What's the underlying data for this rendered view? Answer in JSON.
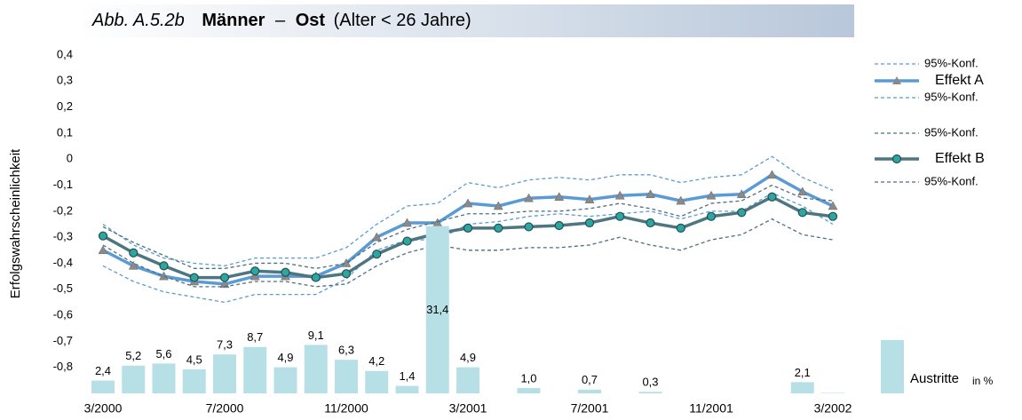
{
  "chart_data": {
    "type": "line",
    "title": {
      "label": "Abb. A.5.2b",
      "main": "Männer",
      "dash": "–",
      "region": "Ost",
      "note": "(Alter < 26 Jahre)"
    },
    "y_label": "Erfolgswahrscheinlichkeit",
    "categories": [
      "3/2000",
      null,
      null,
      null,
      "7/2000",
      null,
      null,
      null,
      "11/2000",
      null,
      null,
      null,
      "3/2001",
      null,
      null,
      null,
      "7/2001",
      null,
      null,
      null,
      "11/2001",
      null,
      null,
      null,
      "3/2002"
    ],
    "ylim": [
      -0.9,
      0.4
    ],
    "yticks": [
      {
        "value": 0.4,
        "label": "0,4"
      },
      {
        "value": 0.3,
        "label": "0,3"
      },
      {
        "value": 0.2,
        "label": "0,2"
      },
      {
        "value": 0.1,
        "label": "0,1"
      },
      0,
      {
        "value": -0.1,
        "label": "-0,1"
      },
      {
        "value": -0.2,
        "label": "-0,2"
      },
      {
        "value": -0.3,
        "label": "-0,3"
      },
      {
        "value": -0.4,
        "label": "-0,4"
      },
      {
        "value": -0.5,
        "label": "-0,5"
      },
      {
        "value": -0.6,
        "label": "-0,6"
      },
      {
        "value": -0.7,
        "label": "-0,7"
      },
      {
        "value": -0.8,
        "label": "-0,8"
      }
    ],
    "y2lim": [
      0,
      63.5
    ],
    "series": [
      {
        "name": "95%-Konf.",
        "style": "dashed",
        "color": "#5b9bd5",
        "values": [
          -0.25,
          -0.33,
          -0.38,
          -0.4,
          -0.41,
          -0.38,
          -0.38,
          -0.38,
          -0.34,
          -0.25,
          -0.18,
          -0.17,
          -0.09,
          -0.11,
          -0.08,
          -0.07,
          -0.08,
          -0.06,
          -0.06,
          -0.09,
          -0.07,
          -0.06,
          0.01,
          -0.07,
          -0.12
        ]
      },
      {
        "name": "Effekt A",
        "style": "triangle",
        "color": "#5b9bd5",
        "values": [
          -0.35,
          -0.41,
          -0.45,
          -0.47,
          -0.48,
          -0.45,
          -0.45,
          -0.45,
          -0.4,
          -0.3,
          -0.245,
          -0.245,
          -0.17,
          -0.18,
          -0.15,
          -0.145,
          -0.155,
          -0.14,
          -0.135,
          -0.16,
          -0.14,
          -0.135,
          -0.06,
          -0.125,
          -0.18
        ]
      },
      {
        "name": "95%-Konf.",
        "style": "dashed",
        "color": "#5b9bd5",
        "values": [
          -0.41,
          -0.47,
          -0.51,
          -0.53,
          -0.55,
          -0.52,
          -0.52,
          -0.52,
          -0.46,
          -0.35,
          -0.31,
          -0.31,
          -0.25,
          -0.24,
          -0.22,
          -0.21,
          -0.22,
          -0.21,
          -0.2,
          -0.23,
          -0.2,
          -0.2,
          -0.13,
          -0.18,
          -0.25
        ]
      },
      {
        "name": "95%-Konf.",
        "style": "dashed",
        "color": "#4d6f80",
        "values": [
          -0.26,
          -0.32,
          -0.37,
          -0.42,
          -0.42,
          -0.4,
          -0.4,
          -0.42,
          -0.4,
          -0.32,
          -0.27,
          -0.24,
          -0.21,
          -0.21,
          -0.2,
          -0.2,
          -0.19,
          -0.17,
          -0.19,
          -0.22,
          -0.17,
          -0.16,
          -0.1,
          -0.15,
          -0.16
        ]
      },
      {
        "name": "Effekt B",
        "style": "circle",
        "color": "#4d7680",
        "values": [
          -0.295,
          -0.36,
          -0.41,
          -0.455,
          -0.455,
          -0.43,
          -0.435,
          -0.455,
          -0.44,
          -0.365,
          -0.315,
          -0.285,
          -0.265,
          -0.265,
          -0.26,
          -0.255,
          -0.245,
          -0.22,
          -0.245,
          -0.265,
          -0.22,
          -0.205,
          -0.145,
          -0.205,
          -0.22
        ]
      },
      {
        "name": "95%-Konf.",
        "style": "dashed",
        "color": "#4d6f80",
        "values": [
          -0.33,
          -0.4,
          -0.45,
          -0.49,
          -0.49,
          -0.47,
          -0.47,
          -0.49,
          -0.48,
          -0.41,
          -0.36,
          -0.33,
          -0.35,
          -0.35,
          -0.34,
          -0.34,
          -0.33,
          -0.3,
          -0.33,
          -0.35,
          -0.31,
          -0.29,
          -0.23,
          -0.29,
          -0.31
        ]
      },
      {
        "name": "Austritte",
        "unit": "in %",
        "style": "bar",
        "axis": "y2",
        "color": "#b7e0e6",
        "values": [
          2.4,
          5.2,
          5.6,
          4.5,
          7.3,
          8.7,
          4.9,
          9.1,
          6.3,
          4.2,
          1.4,
          31.4,
          4.9,
          null,
          1.0,
          null,
          0.7,
          null,
          0.3,
          null,
          null,
          null,
          null,
          2.1,
          0.1
        ],
        "value_labels": [
          "2,4",
          "5,2",
          "5,6",
          "4,5",
          "7,3",
          "8,7",
          "4,9",
          "9,1",
          "6,3",
          "4,2",
          "1,4",
          "31,4",
          "4,9",
          null,
          "1,0",
          null,
          "0,7",
          null,
          "0,3",
          null,
          null,
          null,
          null,
          "2,1",
          null
        ]
      }
    ]
  }
}
